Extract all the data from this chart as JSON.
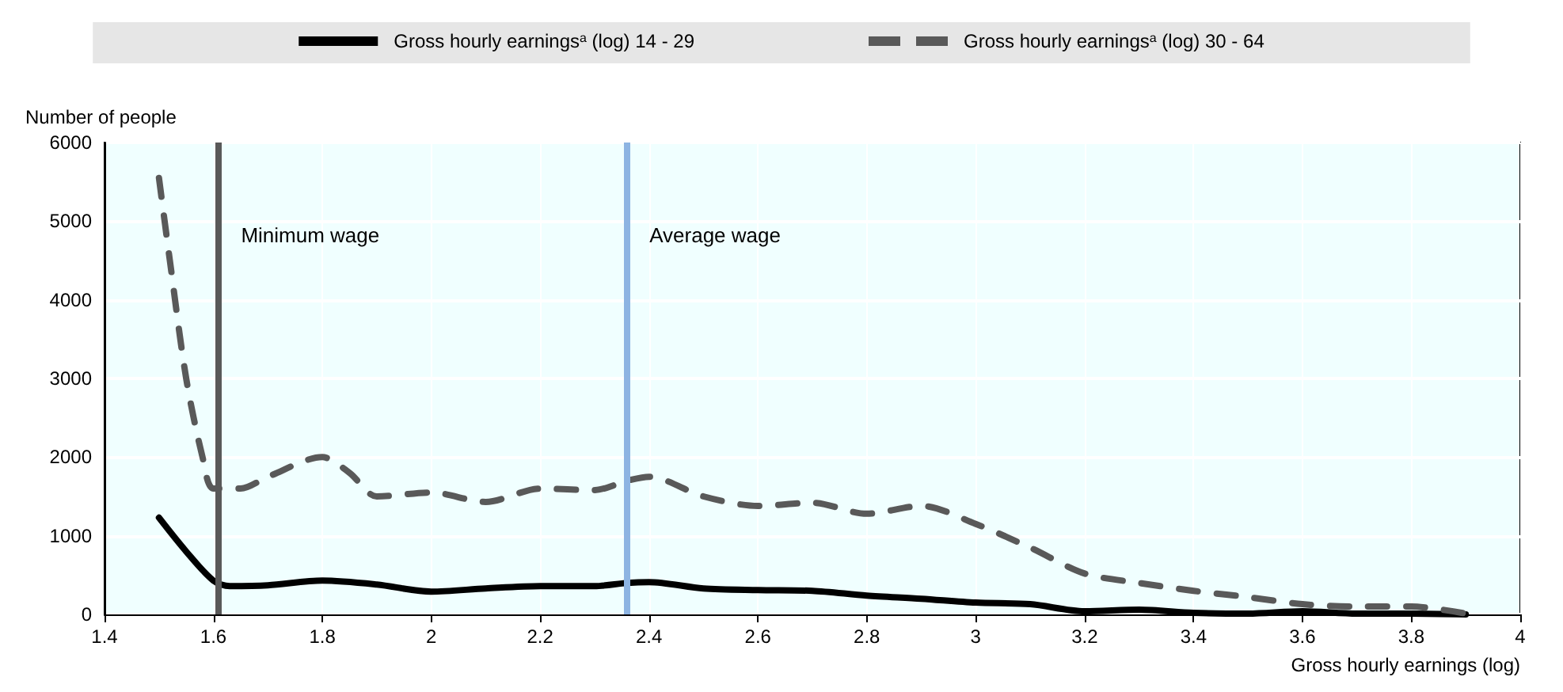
{
  "chart_data": {
    "type": "line",
    "xlabel": "Gross hourly earnings (log)",
    "ylabel": "Number of people",
    "series": [
      {
        "name": "Gross hourly earnings$^{a}$ (log) 14 - 29",
        "color": "#000000",
        "line_style": "solid",
        "x": [
          1.5,
          1.55,
          1.6,
          1.63,
          1.7,
          1.8,
          1.9,
          2.0,
          2.1,
          2.2,
          2.3,
          2.36,
          2.4,
          2.5,
          2.6,
          2.7,
          2.8,
          2.9,
          3.0,
          3.1,
          3.2,
          3.3,
          3.4,
          3.5,
          3.6,
          3.7,
          3.8,
          3.9
        ],
        "values": [
          1230,
          800,
          430,
          360,
          370,
          430,
          380,
          290,
          330,
          360,
          360,
          400,
          410,
          330,
          310,
          300,
          240,
          200,
          150,
          130,
          40,
          60,
          20,
          10,
          40,
          10,
          10,
          0
        ]
      },
      {
        "name": "Gross hourly earnings$^{a}$ (log) 30 - 64",
        "color": "#595959",
        "line_style": "dashed",
        "x": [
          1.5,
          1.52,
          1.55,
          1.58,
          1.6,
          1.65,
          1.7,
          1.8,
          1.85,
          1.9,
          2.0,
          2.1,
          2.2,
          2.3,
          2.36,
          2.4,
          2.5,
          2.6,
          2.7,
          2.8,
          2.9,
          3.0,
          3.1,
          3.2,
          3.3,
          3.4,
          3.5,
          3.6,
          3.7,
          3.8,
          3.9
        ],
        "values": [
          5550,
          4500,
          3000,
          2000,
          1600,
          1600,
          1750,
          2000,
          1800,
          1500,
          1550,
          1430,
          1600,
          1580,
          1700,
          1750,
          1500,
          1380,
          1420,
          1280,
          1380,
          1150,
          850,
          520,
          400,
          300,
          220,
          130,
          100,
          100,
          10
        ]
      }
    ],
    "xlim": [
      1.4,
      4
    ],
    "xticks": [
      1.4,
      1.6,
      1.8,
      2,
      2.2,
      2.4,
      2.6,
      2.8,
      3,
      3.2,
      3.4,
      3.6,
      3.8,
      4
    ],
    "ylim": [
      0,
      6000
    ],
    "yticks": [
      0,
      1000,
      2000,
      3000,
      4000,
      5000,
      6000
    ],
    "ref_lines": [
      {
        "axis": "x",
        "value": 1.61,
        "label": "Minimum wage",
        "color": "#595959"
      },
      {
        "axis": "x",
        "value": 2.36,
        "label": "Average wage",
        "color": "#8db4e2"
      }
    ],
    "grid": true,
    "legend": "top",
    "marker": "none"
  }
}
